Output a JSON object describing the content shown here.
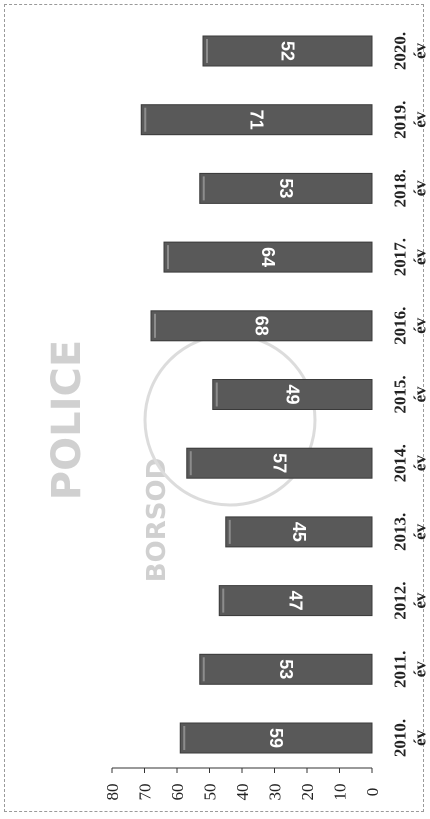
{
  "chart_data": {
    "type": "bar",
    "orientation": "rotated-90-clockwise",
    "categories": [
      [
        "2010.",
        "év"
      ],
      [
        "2011.",
        "év"
      ],
      [
        "2012.",
        "év"
      ],
      [
        "2013.",
        "év"
      ],
      [
        "2014.",
        "év"
      ],
      [
        "2015.",
        "év"
      ],
      [
        "2016.",
        "év"
      ],
      [
        "2017.",
        "év"
      ],
      [
        "2018.",
        "év"
      ],
      [
        "2019.",
        "év"
      ],
      [
        "2020.",
        "év"
      ]
    ],
    "values": [
      59,
      53,
      47,
      45,
      57,
      49,
      68,
      64,
      53,
      71,
      52
    ],
    "ylim": [
      0,
      80
    ],
    "yticks": [
      0,
      10,
      20,
      30,
      40,
      50,
      60,
      70,
      80
    ],
    "title": "",
    "xlabel": "",
    "ylabel": "",
    "grid": false,
    "legend": "none",
    "colors": {
      "bar": "#595959",
      "bar_edge": "#3a3a3a",
      "bar_highlight": "#8c8c8c",
      "label": "#ffffff",
      "axis": "#333333"
    }
  },
  "watermark": {
    "word_top": "POLICE",
    "word_bottom": "BORSOD"
  }
}
